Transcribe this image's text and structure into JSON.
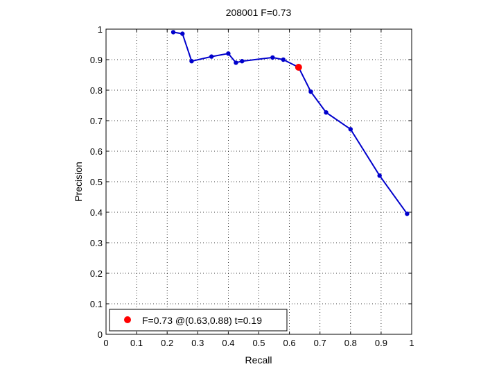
{
  "chart_data": {
    "type": "line",
    "title": "208001 F=0.73",
    "xlabel": "Recall",
    "ylabel": "Precision",
    "xlim": [
      0,
      1
    ],
    "ylim": [
      0,
      1
    ],
    "xticks": [
      0,
      0.1,
      0.2,
      0.3,
      0.4,
      0.5,
      0.6,
      0.7,
      0.8,
      0.9,
      1
    ],
    "xtick_labels": [
      "0",
      "0.1",
      "0.2",
      "0.3",
      "0.4",
      "0.5",
      "0.6",
      "0.7",
      "0.8",
      "0.9",
      "1"
    ],
    "yticks": [
      0,
      0.1,
      0.2,
      0.3,
      0.4,
      0.5,
      0.6,
      0.7,
      0.8,
      0.9,
      1
    ],
    "ytick_labels": [
      "0",
      "0.1",
      "0.2",
      "0.3",
      "0.4",
      "0.5",
      "0.6",
      "0.7",
      "0.8",
      "0.9",
      "1"
    ],
    "grid": true,
    "legend_position": "bottom-left",
    "series": [
      {
        "color": "#0000cc",
        "marker": "dot",
        "x": [
          0.22,
          0.25,
          0.28,
          0.345,
          0.4,
          0.425,
          0.445,
          0.545,
          0.58,
          0.63,
          0.67,
          0.72,
          0.8,
          0.895,
          0.985
        ],
        "y": [
          0.99,
          0.985,
          0.895,
          0.91,
          0.92,
          0.89,
          0.895,
          0.907,
          0.9,
          0.875,
          0.795,
          0.727,
          0.672,
          0.52,
          0.395
        ]
      }
    ],
    "highlight": {
      "label": "F=0.73 @(0.63,0.88) t=0.19",
      "x": 0.63,
      "y": 0.875,
      "color": "#ff0000"
    }
  }
}
